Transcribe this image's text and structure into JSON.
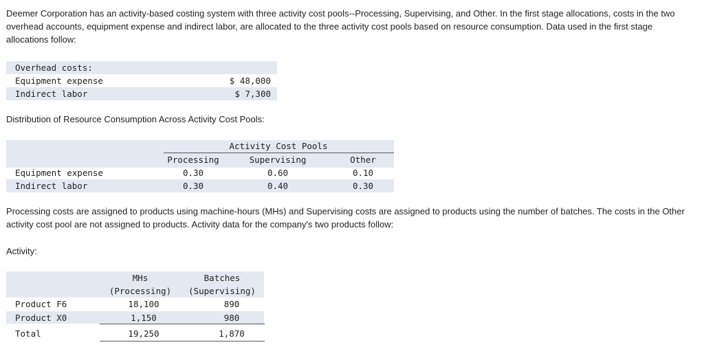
{
  "intro": "Deemer Corporation has an activity-based costing system with three activity cost pools--Processing, Supervising, and Other. In the first stage allocations, costs in the two overhead accounts, equipment expense and indirect labor, are allocated to the three activity cost pools based on resource consumption. Data used in the first stage allocations follow:",
  "overhead": {
    "heading": "Overhead costs:",
    "rows": [
      {
        "label": "Equipment expense",
        "value": "$ 48,000"
      },
      {
        "label": "Indirect labor",
        "value": "$ 7,300"
      }
    ]
  },
  "distribution": {
    "caption": "Distribution of Resource Consumption Across Activity Cost Pools:",
    "group_header": "Activity Cost Pools",
    "columns": [
      "Processing",
      "Supervising",
      "Other"
    ],
    "rows": [
      {
        "label": "Equipment expense",
        "values": [
          "0.30",
          "0.60",
          "0.10"
        ]
      },
      {
        "label": "Indirect labor",
        "values": [
          "0.30",
          "0.40",
          "0.30"
        ]
      }
    ]
  },
  "assignment_text": "Processing costs are assigned to products using machine-hours (MHs) and Supervising costs are assigned to products using the number of batches. The costs in the Other activity cost pool are not assigned to products. Activity data for the company's two products follow:",
  "activity": {
    "caption": "Activity:",
    "col1": {
      "line1": "MHs",
      "line2": "(Processing)"
    },
    "col2": {
      "line1": "Batches",
      "line2": "(Supervising)"
    },
    "rows": [
      {
        "label": "Product F6",
        "values": [
          "18,100",
          "890"
        ]
      },
      {
        "label": "Product X0",
        "values": [
          "1,150",
          "980"
        ]
      }
    ],
    "total": {
      "label": "Total",
      "values": [
        "19,250",
        "1,870"
      ]
    }
  }
}
